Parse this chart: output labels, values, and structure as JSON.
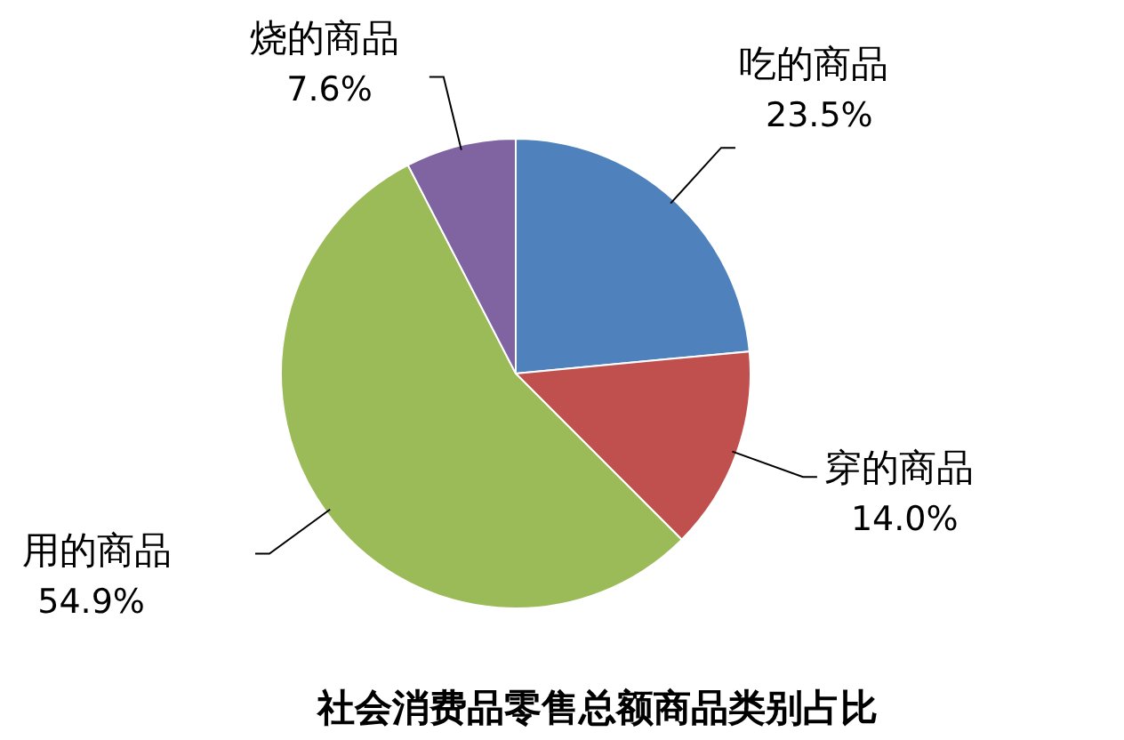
{
  "chart_data": {
    "type": "pie",
    "title": "社会消费品零售总额商品类别占比",
    "categories": [
      "吃的商品",
      "穿的商品",
      "用的商品",
      "烧的商品"
    ],
    "values": [
      23.5,
      14.0,
      54.9,
      7.6
    ],
    "value_labels": [
      "23.5%",
      "14.0%",
      "54.9%",
      "7.6%"
    ],
    "colors": [
      "#4f81bd",
      "#c0504d",
      "#9bbb59",
      "#8064a2"
    ]
  }
}
